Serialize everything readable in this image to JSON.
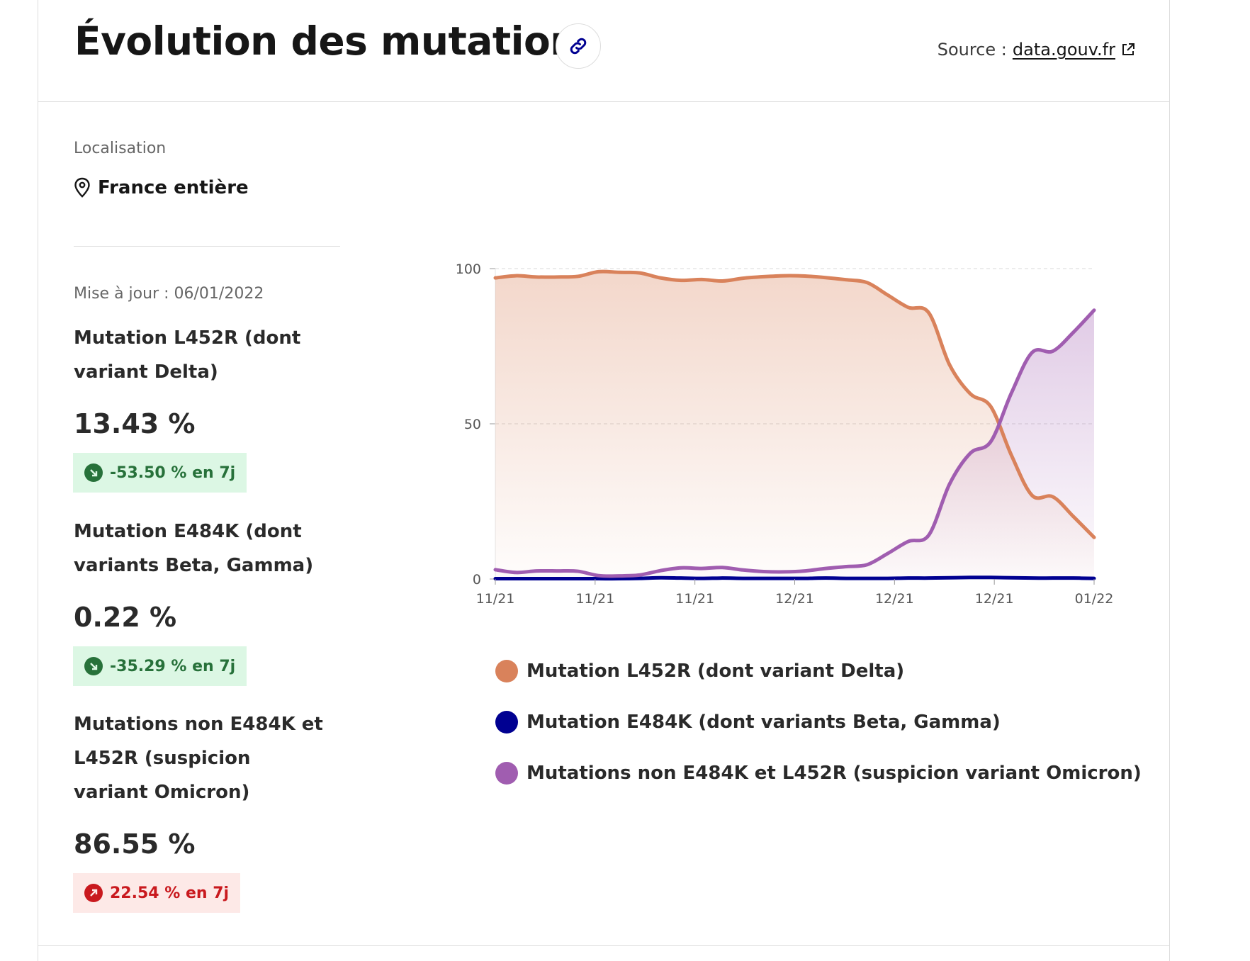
{
  "header": {
    "title": "Évolution des mutations",
    "source_prefix": "Source :",
    "source_link": "data.gouv.fr"
  },
  "location": {
    "label": "Localisation",
    "value": "France entière"
  },
  "updated": "Mise à jour : 06/01/2022",
  "metrics": [
    {
      "title": "Mutation L452R (dont variant Delta)",
      "value": "13.43 %",
      "change": "-53.50 % en 7j",
      "trend": "down"
    },
    {
      "title": "Mutation E484K (dont variants Beta, Gamma)",
      "value": "0.22 %",
      "change": "-35.29 % en 7j",
      "trend": "down"
    },
    {
      "title": "Mutations non E484K et L452R (suspicion variant Omicron)",
      "value": "86.55 %",
      "change": "22.54 % en 7j",
      "trend": "up"
    }
  ],
  "colors": {
    "l452r": "#d9825b",
    "e484k": "#000091",
    "omicron": "#a05db0",
    "badge_down": "#27713a",
    "badge_up": "#c9191e"
  },
  "icons": {
    "link": "link-icon",
    "external": "external-link-icon",
    "location": "map-pin-icon",
    "trend_down": "arrow-down-right-icon",
    "trend_up": "arrow-up-right-icon"
  },
  "chart_data": {
    "type": "area",
    "x_tick_labels": [
      "11/21",
      "11/21",
      "11/21",
      "12/21",
      "12/21",
      "12/21",
      "01/22"
    ],
    "y_ticks": [
      0,
      50,
      100
    ],
    "ylim": [
      0,
      100
    ],
    "grid": true,
    "legend_position": "bottom",
    "series": [
      {
        "name": "Mutation L452R (dont variant Delta)",
        "color": "#d9825b",
        "values": [
          97,
          97.7,
          97.3,
          97.3,
          97.5,
          99,
          98.8,
          98.6,
          97,
          96.2,
          96.5,
          96,
          96.9,
          97.4,
          97.7,
          97.6,
          97.1,
          96.4,
          95.5,
          91.5,
          87.5,
          85.7,
          69,
          59.7,
          55.5,
          39.8,
          26.9,
          26.5,
          20.1,
          13.4
        ]
      },
      {
        "name": "Mutation E484K (dont variants Beta, Gamma)",
        "color": "#000091",
        "values": [
          0.1,
          0.1,
          0.1,
          0.1,
          0.1,
          0.1,
          0.1,
          0.2,
          0.4,
          0.3,
          0.2,
          0.3,
          0.2,
          0.2,
          0.2,
          0.2,
          0.3,
          0.2,
          0.2,
          0.2,
          0.3,
          0.3,
          0.4,
          0.5,
          0.5,
          0.4,
          0.3,
          0.3,
          0.3,
          0.2
        ]
      },
      {
        "name": "Mutations non E484K et L452R (suspicion variant Omicron)",
        "color": "#a05db0",
        "values": [
          3,
          2.1,
          2.6,
          2.6,
          2.5,
          1.1,
          1,
          1.3,
          2.7,
          3.6,
          3.4,
          3.7,
          2.9,
          2.4,
          2.3,
          2.6,
          3.4,
          4,
          4.6,
          8.2,
          12.1,
          14.2,
          30.6,
          40.5,
          44.3,
          60,
          73,
          73.4,
          79.5,
          86.6
        ]
      }
    ]
  }
}
